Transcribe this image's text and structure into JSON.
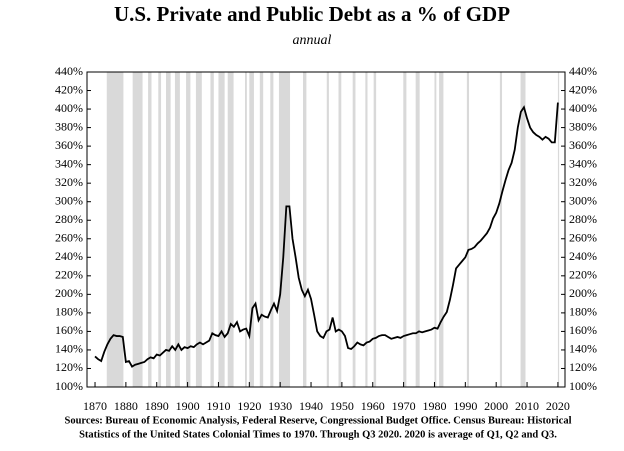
{
  "chart_data": {
    "type": "line",
    "title": "U.S. Private and Public Debt as a % of GDP",
    "subtitle": "annual",
    "notes": [
      "Sources: Bureau of Economic Analysis, Federal Reserve, Congressional Budget Office. Census Bureau: Historical",
      "Statistics of the United States Colonial Times to 1970.  Through Q3 2020. 2020 is average of Q1, Q2 and Q3."
    ],
    "color": "#000000",
    "recession_color": "#d9d9d9",
    "recessions": [
      [
        1873.8,
        1879.2
      ],
      [
        1882.2,
        1885.4
      ],
      [
        1887.2,
        1888.3
      ],
      [
        1890.5,
        1891.4
      ],
      [
        1893.0,
        1894.5
      ],
      [
        1895.9,
        1897.5
      ],
      [
        1899.5,
        1900.9
      ],
      [
        1902.7,
        1904.6
      ],
      [
        1907.4,
        1908.5
      ],
      [
        1910.0,
        1912.0
      ],
      [
        1913.0,
        1914.9
      ],
      [
        1918.6,
        1919.2
      ],
      [
        1920.0,
        1921.5
      ],
      [
        1923.4,
        1924.5
      ],
      [
        1926.8,
        1927.8
      ],
      [
        1929.6,
        1933.2
      ],
      [
        1937.4,
        1938.5
      ],
      [
        1945.1,
        1945.8
      ],
      [
        1948.9,
        1949.8
      ],
      [
        1953.5,
        1954.4
      ],
      [
        1957.6,
        1958.3
      ],
      [
        1960.3,
        1961.1
      ],
      [
        1969.9,
        1970.9
      ],
      [
        1973.9,
        1975.2
      ],
      [
        1980.0,
        1980.6
      ],
      [
        1981.5,
        1982.9
      ],
      [
        1990.5,
        1991.2
      ],
      [
        2001.2,
        2001.9
      ],
      [
        2007.9,
        2009.5
      ],
      [
        2020.0,
        2020.4
      ]
    ],
    "x": [
      1870,
      1871,
      1872,
      1873,
      1874,
      1875,
      1876,
      1877,
      1878,
      1879,
      1880,
      1881,
      1882,
      1883,
      1884,
      1885,
      1886,
      1887,
      1888,
      1889,
      1890,
      1891,
      1892,
      1893,
      1894,
      1895,
      1896,
      1897,
      1898,
      1899,
      1900,
      1901,
      1902,
      1903,
      1904,
      1905,
      1906,
      1907,
      1908,
      1909,
      1910,
      1911,
      1912,
      1913,
      1914,
      1915,
      1916,
      1917,
      1918,
      1919,
      1920,
      1921,
      1922,
      1923,
      1924,
      1925,
      1926,
      1927,
      1928,
      1929,
      1930,
      1931,
      1932,
      1933,
      1934,
      1935,
      1936,
      1937,
      1938,
      1939,
      1940,
      1941,
      1942,
      1943,
      1944,
      1945,
      1946,
      1947,
      1948,
      1949,
      1950,
      1951,
      1952,
      1953,
      1954,
      1955,
      1956,
      1957,
      1958,
      1959,
      1960,
      1961,
      1962,
      1963,
      1964,
      1965,
      1966,
      1967,
      1968,
      1969,
      1970,
      1971,
      1972,
      1973,
      1974,
      1975,
      1976,
      1977,
      1978,
      1979,
      1980,
      1981,
      1982,
      1983,
      1984,
      1985,
      1986,
      1987,
      1988,
      1989,
      1990,
      1991,
      1992,
      1993,
      1994,
      1995,
      1996,
      1997,
      1998,
      1999,
      2000,
      2001,
      2002,
      2003,
      2004,
      2005,
      2006,
      2007,
      2008,
      2009,
      2010,
      2011,
      2012,
      2013,
      2014,
      2015,
      2016,
      2017,
      2018,
      2019,
      2020
    ],
    "values": [
      133,
      130,
      128,
      138,
      146,
      152,
      156,
      155,
      155,
      154,
      127,
      128,
      122,
      124,
      125,
      126,
      127,
      130,
      132,
      131,
      135,
      134,
      137,
      140,
      139,
      144,
      140,
      146,
      140,
      143,
      142,
      144,
      143,
      146,
      148,
      146,
      148,
      150,
      158,
      156,
      155,
      160,
      154,
      158,
      168,
      165,
      170,
      160,
      162,
      163,
      155,
      185,
      190,
      172,
      178,
      176,
      175,
      183,
      190,
      182,
      200,
      240,
      295,
      295,
      260,
      240,
      218,
      205,
      198,
      205,
      195,
      178,
      160,
      155,
      153,
      160,
      162,
      175,
      160,
      162,
      160,
      155,
      142,
      141,
      144,
      148,
      146,
      145,
      148,
      149,
      152,
      153,
      155,
      156,
      156,
      154,
      152,
      153,
      154,
      153,
      155,
      156,
      157,
      158,
      158,
      160,
      159,
      160,
      161,
      162,
      164,
      163,
      170,
      176,
      181,
      194,
      210,
      228,
      232,
      236,
      240,
      248,
      249,
      251,
      255,
      258,
      262,
      266,
      272,
      282,
      288,
      298,
      311,
      323,
      334,
      342,
      356,
      380,
      397,
      402,
      390,
      380,
      375,
      372,
      370,
      367,
      370,
      368,
      364,
      364,
      407
    ],
    "xlim": [
      1867.4,
      2022.3
    ],
    "ylim": [
      100,
      440
    ],
    "xticks": [
      1870,
      1880,
      1890,
      1900,
      1910,
      1920,
      1930,
      1940,
      1950,
      1960,
      1970,
      1980,
      1990,
      2000,
      2010,
      2020
    ],
    "yticks": [
      {
        "value": 100,
        "label": "100%"
      },
      {
        "value": 120,
        "label": "120%"
      },
      {
        "value": 140,
        "label": "140%"
      },
      {
        "value": 160,
        "label": "160%"
      },
      {
        "value": 180,
        "label": "180%"
      },
      {
        "value": 200,
        "label": "200%"
      },
      {
        "value": 220,
        "label": "220%"
      },
      {
        "value": 240,
        "label": "240%"
      },
      {
        "value": 260,
        "label": "260%"
      },
      {
        "value": 280,
        "label": "280%"
      },
      {
        "value": 300,
        "label": "300%"
      },
      {
        "value": 320,
        "label": "320%"
      },
      {
        "value": 340,
        "label": "340%"
      },
      {
        "value": 360,
        "label": "360%"
      },
      {
        "value": 380,
        "label": "380%"
      },
      {
        "value": 400,
        "label": "400%"
      },
      {
        "value": 420,
        "label": "420%"
      },
      {
        "value": 440,
        "label": "440%"
      }
    ]
  }
}
